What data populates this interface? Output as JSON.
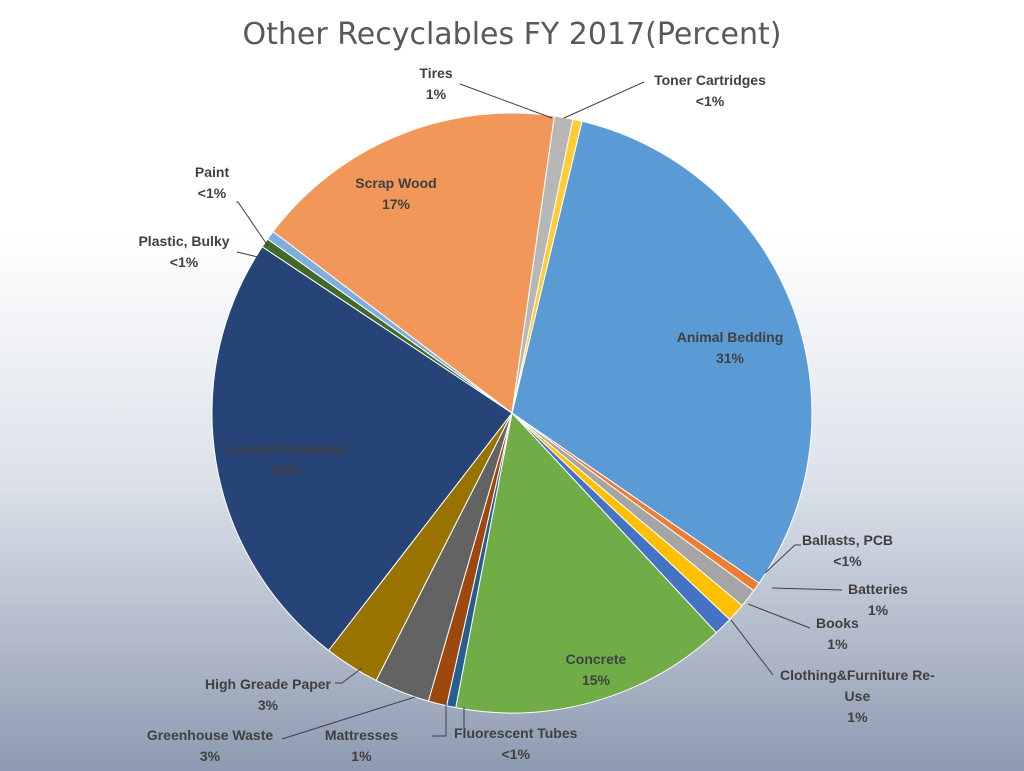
{
  "chart_data": {
    "type": "pie",
    "title": "Other Recyclables FY 2017(Percent)",
    "start_angle_deg": 13.5,
    "slices": [
      {
        "label": "Animal Bedding",
        "value": 31,
        "display": "31%",
        "color": "#5b9bd5"
      },
      {
        "label": "Ballasts, PCB",
        "value": 0.5,
        "display": "<1%",
        "color": "#ed7d31"
      },
      {
        "label": "Batteries",
        "value": 1,
        "display": "1%",
        "color": "#a5a5a5"
      },
      {
        "label": "Books",
        "value": 1,
        "display": "1%",
        "color": "#ffc000"
      },
      {
        "label": "Clothing&Furniture Re-Use",
        "value": 1,
        "display": "1%",
        "color": "#4472c4"
      },
      {
        "label": "Concrete",
        "value": 15,
        "display": "15%",
        "color": "#70ad47"
      },
      {
        "label": "Fluorescent Tubes",
        "value": 0.5,
        "display": "<1%",
        "color": "#255e91"
      },
      {
        "label": "Mattresses",
        "value": 1,
        "display": "1%",
        "color": "#9e480e"
      },
      {
        "label": "Greenhouse Waste",
        "value": 3,
        "display": "3%",
        "color": "#636363"
      },
      {
        "label": "High Greade Paper",
        "value": 3,
        "display": "3%",
        "color": "#997300"
      },
      {
        "label": "Leaves/Yardwaste",
        "value": 24,
        "display": "24%",
        "color": "#264478"
      },
      {
        "label": "Plastic, Bulky",
        "value": 0.5,
        "display": "<1%",
        "color": "#43682b"
      },
      {
        "label": "Paint",
        "value": 0.5,
        "display": "<1%",
        "color": "#7cafdd"
      },
      {
        "label": "Scrap Wood",
        "value": 17,
        "display": "17%",
        "color": "#f1975a"
      },
      {
        "label": "Tires",
        "value": 1,
        "display": "1%",
        "color": "#b7b7b7"
      },
      {
        "label": "Toner Cartridges",
        "value": 0.5,
        "display": "<1%",
        "color": "#ffcd33"
      }
    ]
  }
}
